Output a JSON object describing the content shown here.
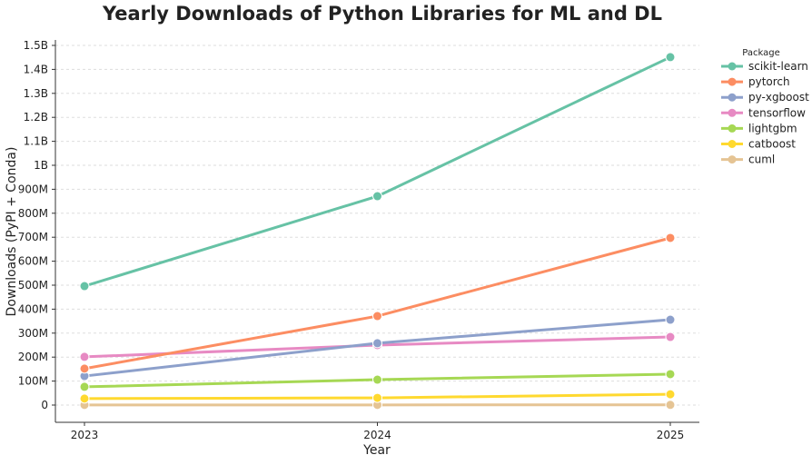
{
  "chart_data": {
    "type": "line",
    "title": "Yearly Downloads of Python Libraries for ML and DL",
    "xlabel": "Year",
    "ylabel": "Downloads (PyPI + Conda)",
    "x": [
      2023,
      2024,
      2025
    ],
    "x_tick_labels": [
      "2023",
      "2024",
      "2025"
    ],
    "ylim": [
      0,
      1500000000
    ],
    "y_ticks": [
      0,
      100000000,
      200000000,
      300000000,
      400000000,
      500000000,
      600000000,
      700000000,
      800000000,
      900000000,
      1000000000,
      1100000000,
      1200000000,
      1300000000,
      1400000000,
      1500000000
    ],
    "y_tick_labels": [
      "0",
      "100M",
      "200M",
      "300M",
      "400M",
      "500M",
      "600M",
      "700M",
      "800M",
      "900M",
      "1B",
      "1.1B",
      "1.2B",
      "1.3B",
      "1.4B",
      "1.5B"
    ],
    "grid": "horizontal dashed",
    "legend_title": "Package",
    "legend_placement": "right outside",
    "series": [
      {
        "name": "scikit-learn",
        "color": "#66c2a5",
        "values": [
          496000000,
          871000000,
          1451000000
        ]
      },
      {
        "name": "pytorch",
        "color": "#fc8d62",
        "values": [
          152000000,
          371000000,
          697000000
        ]
      },
      {
        "name": "py-xgboost",
        "color": "#8da0cb",
        "values": [
          121000000,
          258000000,
          356000000
        ]
      },
      {
        "name": "tensorflow",
        "color": "#e78ac3",
        "values": [
          201000000,
          250000000,
          284000000
        ]
      },
      {
        "name": "lightgbm",
        "color": "#a6d854",
        "values": [
          76000000,
          106000000,
          129000000
        ]
      },
      {
        "name": "catboost",
        "color": "#ffd92f",
        "values": [
          27000000,
          30000000,
          45000000
        ]
      },
      {
        "name": "cuml",
        "color": "#e5c494",
        "values": [
          500000,
          700000,
          900000
        ]
      }
    ]
  }
}
